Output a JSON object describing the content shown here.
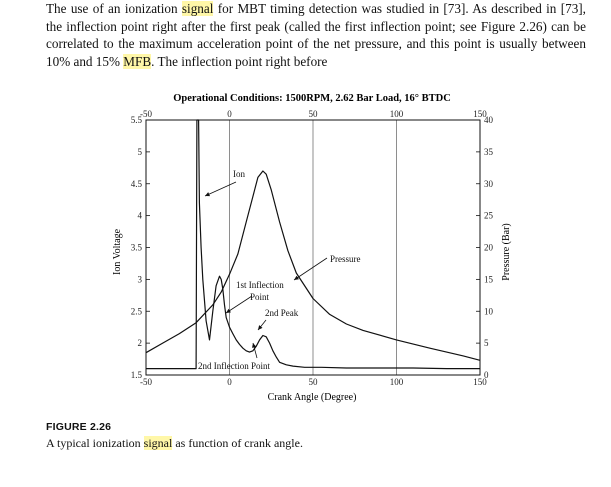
{
  "paragraph": {
    "segments": [
      {
        "text": "The use of an ionization ",
        "hl": false
      },
      {
        "text": "signal",
        "hl": true
      },
      {
        "text": " for MBT timing detection was studied in [73]. As described in [73], the inflection point right after the first peak (called the first inflection point; see Figure 2.26) can be correlated to the maximum acceleration point of the net pressure, and this point is usually between 10% and 15% ",
        "hl": false
      },
      {
        "text": "MFB",
        "hl": true
      },
      {
        "text": ". The inflection point right before",
        "hl": false
      }
    ]
  },
  "chart_data": {
    "type": "line",
    "title": "Operational Conditions: 1500RPM, 2.62 Bar Load, 16° BTDC",
    "xlabel": "Crank Angle (Degree)",
    "ylabel": "Ion Voltage",
    "ylabel_right": "Pressure (Bar)",
    "xlim": [
      -50,
      150
    ],
    "ylim": [
      1.5,
      5.5
    ],
    "ylim_right": [
      0,
      40
    ],
    "x_ticks": [
      "-50",
      "0",
      "50",
      "100",
      "150"
    ],
    "y_ticks": [
      "1.5",
      "2",
      "2.5",
      "3",
      "3.5",
      "4",
      "4.5",
      "5",
      "5.5"
    ],
    "y_right_ticks": [
      "0",
      "5",
      "10",
      "15",
      "20",
      "25",
      "30",
      "35",
      "40"
    ],
    "grid": true,
    "series": [
      {
        "name": "Ion",
        "axis": "left",
        "x": [
          -50,
          -22,
          -20,
          -19.5,
          -19,
          -18.5,
          -18,
          -17,
          -16,
          -14,
          -12,
          -10,
          -8,
          -6,
          -5,
          -4,
          -3,
          -2,
          0,
          2,
          4,
          6,
          8,
          10,
          12,
          14,
          16,
          18,
          20,
          22,
          24,
          26,
          28,
          30,
          34,
          38,
          45,
          55,
          70,
          90,
          110,
          130,
          150
        ],
        "y": [
          1.6,
          1.6,
          1.6,
          5.5,
          5.5,
          5.5,
          4.2,
          3.5,
          3.0,
          2.35,
          2.05,
          2.5,
          2.9,
          3.05,
          3.0,
          2.85,
          2.6,
          2.4,
          2.25,
          2.15,
          2.05,
          1.98,
          1.92,
          1.88,
          1.86,
          1.88,
          1.95,
          2.05,
          2.12,
          2.1,
          2.0,
          1.88,
          1.78,
          1.7,
          1.66,
          1.64,
          1.62,
          1.62,
          1.61,
          1.61,
          1.61,
          1.6,
          1.6
        ]
      },
      {
        "name": "Pressure",
        "axis": "right",
        "x": [
          -50,
          -40,
          -30,
          -20,
          -10,
          -5,
          0,
          5,
          10,
          14,
          17,
          20,
          22,
          25,
          30,
          35,
          40,
          50,
          60,
          70,
          80,
          100,
          120,
          140,
          150
        ],
        "y": [
          3.5,
          5.0,
          6.5,
          8.2,
          11.0,
          13.0,
          15.8,
          19.0,
          24.0,
          28.0,
          31.0,
          32.0,
          31.5,
          29.0,
          24.0,
          19.5,
          16.0,
          12.0,
          9.5,
          8.0,
          7.0,
          5.5,
          4.2,
          3.0,
          2.3
        ]
      }
    ],
    "annotations": [
      {
        "text": "Ion"
      },
      {
        "text": "Pressure"
      },
      {
        "text": "1st Inflection",
        "text2": "Point"
      },
      {
        "text": "2nd Peak"
      },
      {
        "text": "2nd Inflection Point"
      }
    ]
  },
  "figure": {
    "label": "FIGURE 2.26",
    "caption_segments": [
      {
        "text": "A typical ionization ",
        "hl": false
      },
      {
        "text": "signal",
        "hl": true
      },
      {
        "text": " as function of crank angle.",
        "hl": false
      }
    ]
  }
}
